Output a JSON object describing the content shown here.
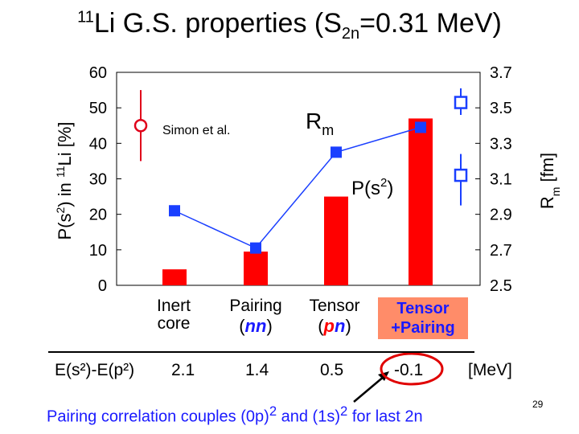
{
  "title": {
    "nuclide_mass": "11",
    "nuclide": "Li",
    "main": " G.S. properties  (S",
    "sub": "2n",
    "tail": "=0.31 MeV)"
  },
  "chart_data": {
    "type": "bar",
    "categories": [
      {
        "line1": "Inert",
        "line2": "core"
      },
      {
        "line1": "Pairing",
        "line2": ""
      },
      {
        "line1": "Tensor",
        "line2": ""
      },
      {
        "line1": "Tensor",
        "line2": "+Pairing"
      }
    ],
    "bar_values": [
      4.5,
      9.5,
      25,
      47
    ],
    "rm_values": [
      2.92,
      2.71,
      3.25,
      3.39
    ],
    "ylim_left": [
      0,
      60
    ],
    "yticks_left": [
      0,
      10,
      20,
      30,
      40,
      50,
      60
    ],
    "ylim_right": [
      2.5,
      3.7
    ],
    "yticks_right": [
      "2.5",
      "2.7",
      "2.9",
      "3.1",
      "3.3",
      "3.5",
      "3.7"
    ],
    "ylabel_left": {
      "pre": "P(s",
      "sup": "2",
      "mid": ") in ",
      "nuc_sup": "11",
      "nuc": "Li [%]"
    },
    "ylabel_right": {
      "pre": "R",
      "sub": "m",
      "post": " [fm]"
    },
    "label_rm": {
      "main": "R",
      "sub": "m"
    },
    "label_ps2": {
      "pre": "P(s",
      "sup": "2",
      "post": ")"
    },
    "legend": "Simon et al.",
    "exp_ps2": {
      "value": 45,
      "err": 10
    },
    "exp_rm": [
      {
        "value": 3.53,
        "err_low": 0.07,
        "err_high": 0.08
      },
      {
        "value": 3.12,
        "err_low": 0.17,
        "err_high": 0.12
      }
    ],
    "colors": {
      "bar": "#ff0000",
      "line": "#1a3fff",
      "exp": "#e0001a",
      "exp_rm": "#1a3fff"
    }
  },
  "labels": {
    "nn_open": "(",
    "nn": "nn",
    "nn_close": ")",
    "pn_open": "(",
    "pn_p": "p",
    "pn_n": "n",
    "pn_close": ")"
  },
  "energy_row": {
    "label": "E(s²)-E(p²)",
    "values": [
      "2.1",
      "1.4",
      "0.5",
      "-0.1"
    ],
    "unit": "[MeV]"
  },
  "note": {
    "text1": "Pairing correlation couples (0p)",
    "sup1": "2",
    "text2": " and (1s)",
    "sup2": "2",
    "text3": " for last 2n"
  },
  "page_number": "29"
}
